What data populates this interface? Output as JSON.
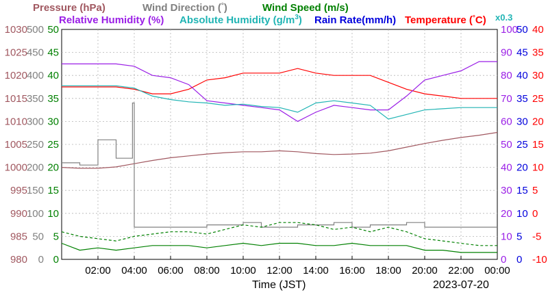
{
  "chart_data": {
    "type": "line",
    "legend": {
      "row1": [
        {
          "text": "Pressure (hPa)",
          "color": "#a0575f"
        },
        {
          "text": "Wind Direction (",
          "suffix": ")",
          "symbol": "°",
          "color": "#808080"
        },
        {
          "text": "Wind Speed (m/s)",
          "color": "#008000"
        }
      ],
      "row2": [
        {
          "text": "Relative Humidity (%)",
          "color": "#9a1ee6"
        },
        {
          "text": "Absolute Humidity (g/m",
          "sup": "3",
          "suffix": ")",
          "color": "#20b4b4"
        },
        {
          "text": "Rain Rate(mm/h)",
          "color": "#0000dc"
        },
        {
          "text": "Temperature (",
          "symbol": "°",
          "suffix": "C)",
          "color": "#ff0000"
        }
      ],
      "scale_note": {
        "text": "x0.3",
        "color": "#20b4b4"
      }
    },
    "xlabel": "Time (JST)",
    "date": "2023-07-20",
    "x_range_hours": [
      0,
      24
    ],
    "x_ticks": [
      "02:00",
      "04:00",
      "06:00",
      "08:00",
      "10:00",
      "12:00",
      "14:00",
      "16:00",
      "18:00",
      "20:00",
      "22:00",
      "00:00"
    ],
    "grid": true,
    "axes": {
      "pressure": {
        "side": "left",
        "color": "#a0575f",
        "range": [
          980,
          1030
        ],
        "ticks": [
          "980",
          "985",
          "990",
          "995",
          "1000",
          "1005",
          "1010",
          "1015",
          "1020",
          "1025",
          "1030"
        ]
      },
      "wind_direction": {
        "side": "left",
        "color": "#808080",
        "range": [
          0,
          500
        ],
        "ticks": [
          "0",
          "50",
          "100",
          "150",
          "200",
          "250",
          "300",
          "350",
          "400",
          "450",
          "500"
        ]
      },
      "wind_speed": {
        "side": "left",
        "color": "#008000",
        "range": [
          0,
          50
        ],
        "ticks": [
          "0",
          "5",
          "10",
          "15",
          "20",
          "25",
          "30",
          "35",
          "40",
          "45",
          "50"
        ]
      },
      "humidity": {
        "side": "right",
        "color": "#9a1ee6",
        "range": [
          0,
          100
        ],
        "ticks": [
          "0",
          "10",
          "20",
          "30",
          "40",
          "50",
          "60",
          "70",
          "80",
          "90",
          "100"
        ]
      },
      "rain_rate": {
        "side": "right",
        "color": "#0000dc",
        "range": [
          0,
          50
        ],
        "ticks": [
          "0",
          "5",
          "10",
          "15",
          "20",
          "25",
          "30",
          "35",
          "40",
          "45",
          "50"
        ]
      },
      "temperature": {
        "side": "right",
        "color": "#ff0000",
        "range": [
          -10,
          40
        ],
        "ticks": [
          "-10",
          "-5",
          "0",
          "5",
          "10",
          "15",
          "20",
          "25",
          "30",
          "35",
          "40"
        ]
      }
    },
    "series": [
      {
        "name": "Pressure",
        "color": "#a0575f",
        "axis": "pressure",
        "x": [
          0,
          1,
          2,
          3,
          4,
          5,
          6,
          7,
          8,
          9,
          10,
          11,
          12,
          13,
          14,
          15,
          16,
          17,
          18,
          19,
          20,
          21,
          22,
          23,
          24
        ],
        "y": [
          1000.0,
          999.8,
          999.8,
          1000.1,
          1000.8,
          1001.5,
          1002.1,
          1002.5,
          1002.9,
          1003.2,
          1003.4,
          1003.4,
          1003.6,
          1003.4,
          1003.0,
          1002.8,
          1002.9,
          1003.1,
          1003.6,
          1004.4,
          1005.2,
          1005.9,
          1006.5,
          1007.0,
          1007.6
        ]
      },
      {
        "name": "Temperature",
        "color": "#ff0000",
        "axis": "temperature",
        "x": [
          0,
          1,
          2,
          3,
          4,
          5,
          6,
          7,
          8,
          9,
          10,
          11,
          12,
          13,
          14,
          15,
          16,
          17,
          18,
          19,
          20,
          21,
          22,
          23,
          24
        ],
        "y": [
          27.5,
          27.5,
          27.5,
          27.5,
          27.0,
          26.0,
          26.0,
          27.0,
          29.0,
          29.5,
          30.5,
          30.5,
          30.5,
          31.5,
          30.5,
          30.0,
          30.0,
          30.0,
          28.5,
          27.0,
          26.0,
          25.5,
          25.0,
          25.0,
          25.0
        ]
      },
      {
        "name": "Relative Humidity",
        "color": "#9a1ee6",
        "axis": "humidity",
        "x": [
          0,
          1,
          2,
          3,
          4,
          5,
          6,
          7,
          8,
          9,
          10,
          11,
          12,
          13,
          14,
          15,
          16,
          17,
          18,
          19,
          20,
          21,
          22,
          23,
          24
        ],
        "y": [
          85.0,
          85.0,
          85.0,
          85.0,
          84.0,
          80.0,
          79.0,
          76.0,
          69.0,
          68.0,
          67.0,
          66.0,
          65.0,
          60.0,
          64.0,
          67.0,
          66.0,
          65.0,
          65.0,
          71.0,
          78.0,
          80.0,
          82.0,
          86.0,
          86.0
        ]
      },
      {
        "name": "Absolute Humidity",
        "color": "#20b4b4",
        "axis": "humidity",
        "x": [
          0,
          1,
          2,
          3,
          4,
          5,
          6,
          7,
          8,
          9,
          10,
          11,
          12,
          13,
          14,
          15,
          16,
          17,
          18,
          19,
          20,
          21,
          22,
          23,
          24
        ],
        "y": [
          75.5,
          75.5,
          75.5,
          75.5,
          74.5,
          71.0,
          69.5,
          68.5,
          68.0,
          67.0,
          67.5,
          66.5,
          66.0,
          64.0,
          68.0,
          69.0,
          68.0,
          67.0,
          61.0,
          63.0,
          65.0,
          65.5,
          66.0,
          66.0,
          66.0
        ]
      },
      {
        "name": "Wind Direction",
        "color": "#808080",
        "axis": "wind_direction",
        "x": [
          0,
          1,
          2,
          3,
          3.9,
          4,
          5,
          6,
          7,
          8,
          9,
          10,
          11,
          12,
          13,
          14,
          15,
          16,
          17,
          18,
          19,
          20,
          21,
          22,
          23,
          24
        ],
        "y": [
          210,
          205,
          260,
          220,
          340,
          70,
          70,
          70,
          70,
          75,
          75,
          80,
          70,
          70,
          75,
          75,
          80,
          70,
          75,
          75,
          80,
          70,
          70,
          70,
          70,
          70
        ],
        "style": "step"
      },
      {
        "name": "Wind Speed",
        "color": "#008000",
        "axis": "wind_speed",
        "x": [
          0,
          1,
          2,
          3,
          4,
          5,
          6,
          7,
          8,
          9,
          10,
          11,
          12,
          13,
          14,
          15,
          16,
          17,
          18,
          19,
          20,
          21,
          22,
          23,
          24
        ],
        "y": [
          3.5,
          2.0,
          2.5,
          2.0,
          2.5,
          3.0,
          3.0,
          3.0,
          2.5,
          3.0,
          3.5,
          3.0,
          3.5,
          3.5,
          3.0,
          3.0,
          3.5,
          3.0,
          3.0,
          3.0,
          2.0,
          2.0,
          1.5,
          1.5,
          1.5
        ]
      },
      {
        "name": "Wind Speed (gust)",
        "color": "#008000",
        "axis": "wind_speed",
        "x": [
          0,
          1,
          2,
          3,
          4,
          5,
          6,
          7,
          8,
          9,
          10,
          11,
          12,
          13,
          14,
          15,
          16,
          17,
          18,
          19,
          20,
          21,
          22,
          23,
          24
        ],
        "y": [
          6.0,
          5.0,
          4.5,
          4.0,
          5.0,
          5.5,
          6.0,
          6.0,
          5.5,
          6.5,
          7.5,
          7.0,
          8.0,
          8.0,
          7.5,
          6.5,
          7.0,
          6.0,
          7.0,
          6.0,
          4.5,
          4.0,
          3.5,
          3.0,
          3.0
        ],
        "style": "dashed"
      }
    ]
  }
}
